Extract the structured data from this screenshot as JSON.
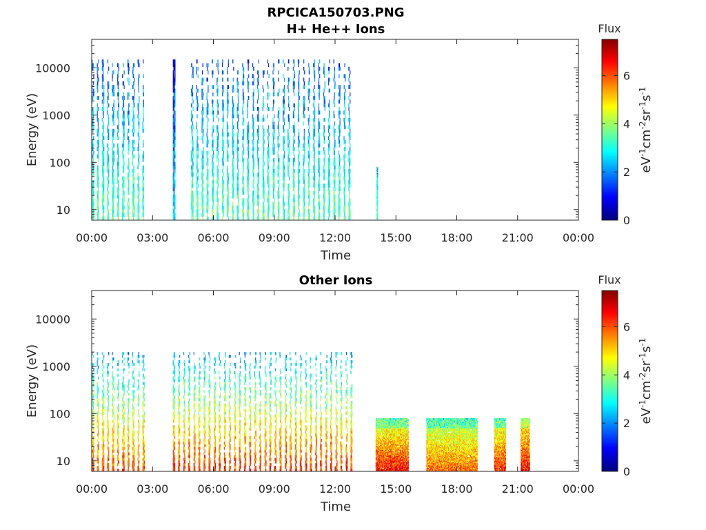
{
  "figure": {
    "title": "RPCICA150703.PNG",
    "background": "#ffffff"
  },
  "chart_data": [
    {
      "type": "heatmap",
      "title": "H+ He++ Ions",
      "xlabel": "Time",
      "ylabel": "Energy (eV)",
      "x_ticks": [
        "00:00",
        "03:00",
        "06:00",
        "09:00",
        "12:00",
        "15:00",
        "18:00",
        "21:00",
        "00:00"
      ],
      "x_range_hours": [
        0,
        24
      ],
      "y_scale": "log",
      "y_ticks": [
        "10",
        "100",
        "1000",
        "10000"
      ],
      "y_range_eV": [
        6,
        40000
      ],
      "colorbar": {
        "title": "Flux",
        "label": "eV-1cm-2sr-1s-1",
        "ticks": [
          "0",
          "2",
          "4",
          "6"
        ],
        "range": [
          0,
          7.5
        ],
        "colormap": "jet"
      },
      "data_blocks": [
        {
          "t_start": 0.0,
          "t_end": 2.55,
          "e_min": 6,
          "e_max": 15000,
          "flux_low_energy": 3.5,
          "flux_high_energy": 1.5,
          "pattern": "sparse"
        },
        {
          "t_start": 4.0,
          "t_end": 4.1,
          "e_min": 6,
          "e_max": 15000,
          "flux_low_energy": 2.5,
          "flux_high_energy": 1.2,
          "pattern": "dense"
        },
        {
          "t_start": 4.9,
          "t_end": 12.85,
          "e_min": 6,
          "e_max": 15000,
          "flux_low_energy": 3.5,
          "flux_high_energy": 1.5,
          "pattern": "sparse"
        },
        {
          "t_start": 14.05,
          "t_end": 14.1,
          "e_min": 6,
          "e_max": 80,
          "flux_low_energy": 3.2,
          "flux_high_energy": 2.8,
          "pattern": "dense"
        }
      ]
    },
    {
      "type": "heatmap",
      "title": "Other Ions",
      "xlabel": "Time",
      "ylabel": "Energy (eV)",
      "x_ticks": [
        "00:00",
        "03:00",
        "06:00",
        "09:00",
        "12:00",
        "15:00",
        "18:00",
        "21:00",
        "00:00"
      ],
      "x_range_hours": [
        0,
        24
      ],
      "y_scale": "log",
      "y_ticks": [
        "10",
        "100",
        "1000",
        "10000"
      ],
      "y_range_eV": [
        6,
        40000
      ],
      "colorbar": {
        "title": "Flux",
        "label": "eV-1cm-2sr-1s-1",
        "ticks": [
          "0",
          "2",
          "4",
          "6"
        ],
        "range": [
          0,
          7.5
        ],
        "colormap": "jet"
      },
      "data_blocks": [
        {
          "t_start": 0.0,
          "t_end": 2.6,
          "e_min": 6,
          "e_max": 2000,
          "flux_low_energy": 6.0,
          "flux_high_energy": 2.2,
          "pattern": "sparse"
        },
        {
          "t_start": 4.0,
          "t_end": 12.85,
          "e_min": 6,
          "e_max": 2000,
          "flux_low_energy": 6.2,
          "flux_high_energy": 2.2,
          "pattern": "sparse"
        },
        {
          "t_start": 14.0,
          "t_end": 15.6,
          "e_min": 6,
          "e_max": 80,
          "flux_low_energy": 6.5,
          "flux_high_energy": 4.0,
          "pattern": "dense"
        },
        {
          "t_start": 16.5,
          "t_end": 19.0,
          "e_min": 6,
          "e_max": 80,
          "flux_low_energy": 5.8,
          "flux_high_energy": 3.8,
          "pattern": "dense"
        },
        {
          "t_start": 19.85,
          "t_end": 20.4,
          "e_min": 6,
          "e_max": 80,
          "flux_low_energy": 6.3,
          "flux_high_energy": 4.0,
          "pattern": "dense"
        },
        {
          "t_start": 21.15,
          "t_end": 21.6,
          "e_min": 6,
          "e_max": 80,
          "flux_low_energy": 6.5,
          "flux_high_energy": 4.5,
          "pattern": "dense"
        }
      ]
    }
  ]
}
